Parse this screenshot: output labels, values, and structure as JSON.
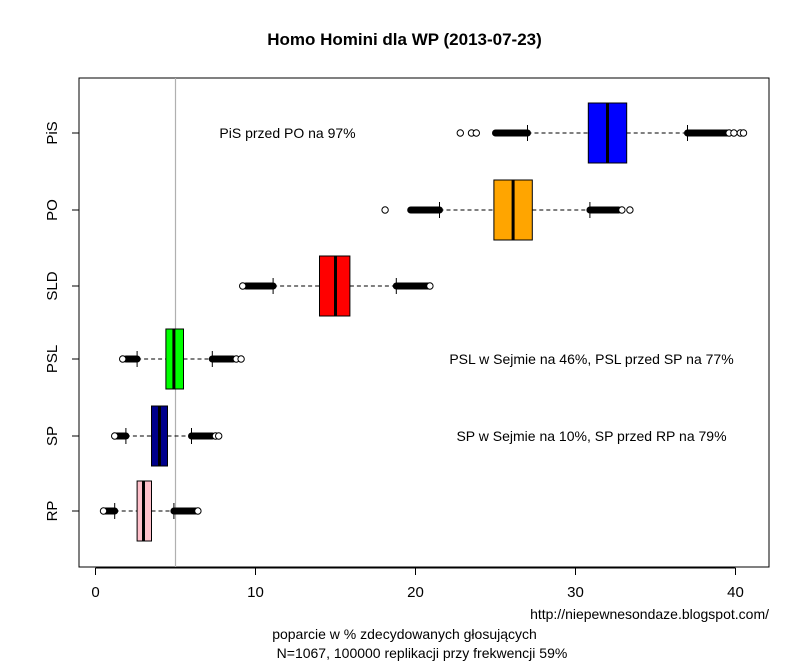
{
  "chart_data": {
    "type": "boxplot-horizontal",
    "title": "Homo Homini dla WP (2013-07-23)",
    "xlabel": "poparcie w % zdecydowanych głosujących",
    "subtitle": "N=1067, 100000 replikacji przy frekwencji 59%",
    "credit": "http://niepewnesondaze.blogspot.com/",
    "xlim": [
      -1,
      42
    ],
    "xticks": [
      0,
      10,
      20,
      30,
      40
    ],
    "threshold_line": 5,
    "grid": false,
    "categories": [
      "PiS",
      "PO",
      "SLD",
      "PSL",
      "SP",
      "RP"
    ],
    "boxes": [
      {
        "label": "PiS",
        "color": "#0000ff",
        "q1": 30.8,
        "median": 32.0,
        "q3": 33.2,
        "whisker_low": 27.0,
        "whisker_high": 37.0,
        "out_low_dense": [
          25.0,
          27.0
        ],
        "out_high_dense": [
          37.0,
          39.5
        ],
        "outliers": [
          22.8,
          23.5,
          23.8,
          39.6,
          39.9,
          40.3,
          40.5
        ]
      },
      {
        "label": "PO",
        "color": "#ffa500",
        "q1": 24.9,
        "median": 26.1,
        "q3": 27.3,
        "whisker_low": 21.5,
        "whisker_high": 30.9,
        "out_low_dense": [
          19.7,
          21.5
        ],
        "out_high_dense": [
          30.9,
          32.7
        ],
        "outliers": [
          18.1,
          32.9,
          33.4
        ]
      },
      {
        "label": "SLD",
        "color": "#ff0000",
        "q1": 14.0,
        "median": 15.0,
        "q3": 15.9,
        "whisker_low": 11.1,
        "whisker_high": 18.8,
        "out_low_dense": [
          9.4,
          11.1
        ],
        "out_high_dense": [
          18.8,
          20.8
        ],
        "outliers": [
          9.2,
          20.9
        ]
      },
      {
        "label": "PSL",
        "color": "#00ff00",
        "q1": 4.4,
        "median": 4.9,
        "q3": 5.5,
        "whisker_low": 2.6,
        "whisker_high": 7.3,
        "out_low_dense": [
          1.9,
          2.6
        ],
        "out_high_dense": [
          7.3,
          8.6
        ],
        "outliers": [
          1.7,
          8.8,
          9.1
        ]
      },
      {
        "label": "SP",
        "color": "#00008b",
        "q1": 3.5,
        "median": 4.0,
        "q3": 4.5,
        "whisker_low": 1.9,
        "whisker_high": 6.0,
        "out_low_dense": [
          1.3,
          1.9
        ],
        "out_high_dense": [
          6.0,
          7.3
        ],
        "outliers": [
          1.2,
          7.5,
          7.7
        ]
      },
      {
        "label": "RP",
        "color": "#ffc0cb",
        "q1": 2.6,
        "median": 3.0,
        "q3": 3.5,
        "whisker_low": 1.2,
        "whisker_high": 4.9,
        "out_low_dense": [
          0.6,
          1.2
        ],
        "out_high_dense": [
          4.9,
          6.3
        ],
        "outliers": [
          0.5,
          6.4
        ]
      }
    ],
    "annotations": [
      {
        "row": "PiS",
        "x": 12,
        "text": "PiS przed PO na 97%"
      },
      {
        "row": "PSL",
        "x": 31,
        "text": "PSL w Sejmie na 46%, PSL przed SP na 77%"
      },
      {
        "row": "SP",
        "x": 31,
        "text": "SP w Sejmie na 10%, SP przed RP na 79%"
      }
    ]
  }
}
